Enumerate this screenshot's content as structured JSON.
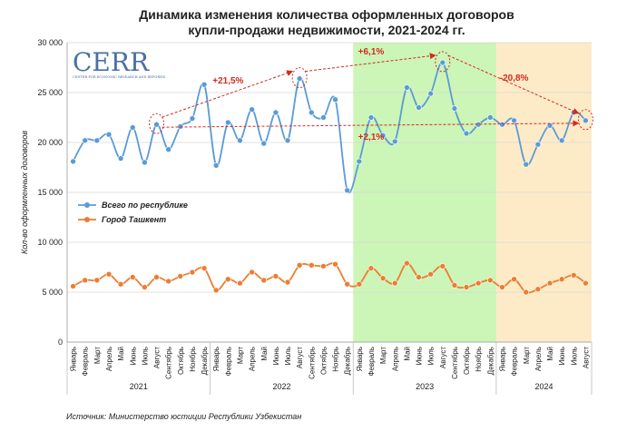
{
  "title_line1": "Динамика изменения количества оформленных договоров",
  "title_line2": "купли-продажи недвижимости, 2021-2024 гг.",
  "source": "Источник: Министерство юстиции Республики Узбекистан",
  "logo": {
    "name": "CERR",
    "subtitle": "CENTER FOR ECONOMIC RESEARCH AND REFORMS"
  },
  "colors": {
    "republic": "#5b9bd5",
    "tashkent": "#ed7d31",
    "annotation": "#d42a1e",
    "band_2023": "#ccf5b8",
    "band_2024": "#fdebc8"
  },
  "chart_data": {
    "type": "line",
    "ylabel": "Кол-во оформленных договоров",
    "ylim": [
      0,
      30000
    ],
    "yticks": [
      0,
      5000,
      10000,
      15000,
      20000,
      25000,
      30000
    ],
    "ytick_labels": [
      "0",
      "5 000",
      "10 000",
      "15 000",
      "20 000",
      "25 000",
      "30 000"
    ],
    "grid": true,
    "legend_position": "left-middle",
    "categories": [
      "Январь",
      "Февраль",
      "Март",
      "Апрель",
      "Май",
      "Июнь",
      "Июль",
      "Август",
      "Сентябрь",
      "Октябрь",
      "Ноябрь",
      "Декабрь",
      "Январь",
      "Февраль",
      "Март",
      "Апрель",
      "Май",
      "Июнь",
      "Июль",
      "Август",
      "Сентябрь",
      "Октябрь",
      "Ноябрь",
      "Декабрь",
      "Январь",
      "Февраль",
      "Март",
      "Апрель",
      "Май",
      "Июнь",
      "Июль",
      "Август",
      "Сентябрь",
      "Октябрь",
      "Ноябрь",
      "Декабрь",
      "Январь",
      "Февраль",
      "Март",
      "Апрель",
      "Май",
      "Июнь",
      "Июль",
      "Август"
    ],
    "years": [
      {
        "label": "2021",
        "months": 12
      },
      {
        "label": "2022",
        "months": 12
      },
      {
        "label": "2023",
        "months": 12
      },
      {
        "label": "2024",
        "months": 8
      }
    ],
    "series": [
      {
        "name": "Всего по республике",
        "values": [
          18100,
          20200,
          20200,
          20800,
          18400,
          21500,
          18000,
          21800,
          19300,
          21600,
          22400,
          25800,
          17700,
          22000,
          20200,
          23300,
          19900,
          23000,
          20200,
          26400,
          23000,
          22500,
          24300,
          15200,
          18100,
          22500,
          20700,
          20100,
          25500,
          23500,
          24900,
          28000,
          23400,
          20900,
          21800,
          22500,
          21800,
          22200,
          17800,
          19800,
          21700,
          20200,
          23000,
          22200
        ]
      },
      {
        "name": "Город Ташкент",
        "values": [
          5600,
          6200,
          6200,
          6800,
          5800,
          6500,
          5500,
          6500,
          6100,
          6600,
          7000,
          7400,
          5200,
          6300,
          5900,
          7000,
          6200,
          6600,
          6000,
          7700,
          7700,
          7600,
          7800,
          5800,
          5800,
          7400,
          6400,
          5900,
          7900,
          6500,
          6800,
          7600,
          5700,
          5500,
          5900,
          6200,
          5500,
          6300,
          5000,
          5300,
          5900,
          6300,
          6700,
          5900
        ]
      }
    ],
    "annotations": [
      {
        "text": "+21,5%",
        "from_index": 7,
        "to_index": 19
      },
      {
        "text": "+6,1%",
        "from_index": 19,
        "to_index": 31
      },
      {
        "text": "-20,8%",
        "from_index": 31,
        "to_index": 43
      },
      {
        "text": "+2,1%",
        "from_index": 7,
        "to_index": 43
      }
    ]
  }
}
